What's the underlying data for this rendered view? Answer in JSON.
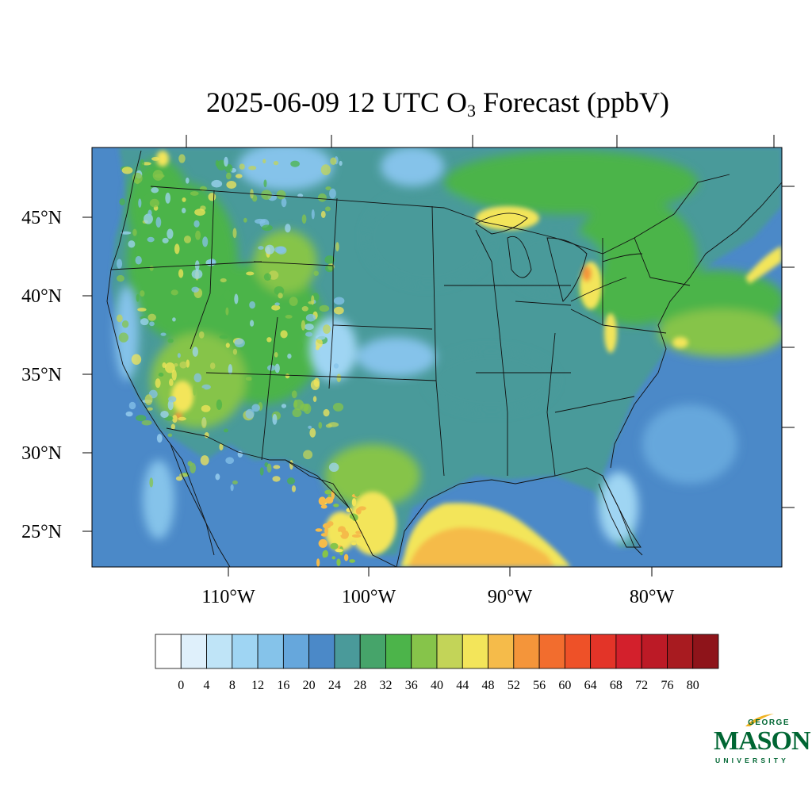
{
  "title": {
    "prefix": "2025-06-09 12 UTC O",
    "subscript": "3",
    "suffix": " Forecast (ppbV)"
  },
  "map": {
    "lon_labels": [
      "110°W",
      "100°W",
      "90°W",
      "80°W"
    ],
    "lat_labels": [
      "45°N",
      "40°N",
      "35°N",
      "30°N",
      "25°N"
    ]
  },
  "colorbar": {
    "colors": [
      "#ffffff",
      "#dff0fb",
      "#bfe4f7",
      "#9fd5f3",
      "#85c3ea",
      "#66a7dc",
      "#4b89c8",
      "#4a9a9a",
      "#46a46a",
      "#4cb44a",
      "#86c44a",
      "#c3d458",
      "#f3e55a",
      "#f5bb4a",
      "#f4953a",
      "#f26d2e",
      "#ee5128",
      "#e33428",
      "#d3202c",
      "#bc1a26",
      "#a81b20",
      "#8e141a"
    ],
    "ticks": [
      "0",
      "4",
      "8",
      "12",
      "16",
      "20",
      "24",
      "28",
      "32",
      "36",
      "40",
      "44",
      "48",
      "52",
      "56",
      "60",
      "64",
      "68",
      "72",
      "76",
      "80"
    ]
  },
  "logo": {
    "top": "GEORGE",
    "main": "MASON",
    "bottom": "UNIVERSITY",
    "color": "#006633",
    "accent": "#f0b323"
  }
}
